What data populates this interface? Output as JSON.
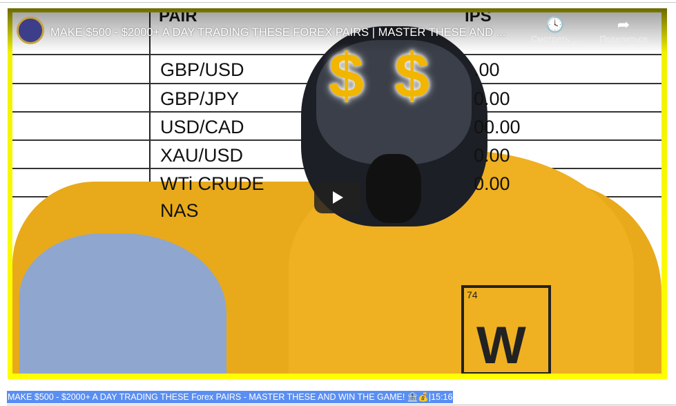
{
  "video": {
    "title": "MAKE $500 - $2000+ A DAY TRADING THESE FOREX PAIRS | MASTER THESE AND ...",
    "watch_later_label": "Смотреть ...",
    "share_label": "Поделиться",
    "watch_later_icon": "clock-icon",
    "share_icon": "share-arrow-icon",
    "border_color": "#ffff00"
  },
  "thumbnail": {
    "header_pair": "PAIR",
    "header_pips": "IPS",
    "rows": [
      {
        "pair": "GBP/USD",
        "pips": ".00"
      },
      {
        "pair": "GBP/JPY",
        "pips": "0.00"
      },
      {
        "pair": "USD/CAD",
        "pips": "00.00"
      },
      {
        "pair": "XAU/USD",
        "pips": "0.00"
      },
      {
        "pair": "WTi CRUDE",
        "pips": "0.00"
      },
      {
        "pair": "NAS",
        "pips": ""
      }
    ],
    "dollar_left": "$",
    "dollar_right": "$",
    "logo_text": "W",
    "logo_number": "74"
  },
  "caption": {
    "text": "MAKE $500 - $2000+ A DAY TRADING THESE Forex PAIRS - MASTER THESE AND WIN THE GAME! ",
    "emoji": "🏦💰",
    "duration": "|15:16",
    "highlight_color": "#5a8ef2"
  }
}
